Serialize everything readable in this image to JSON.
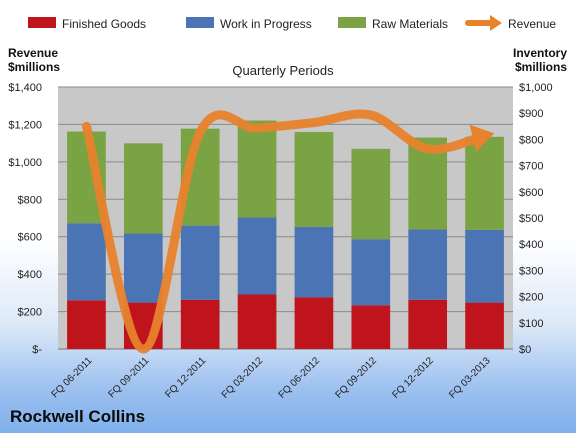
{
  "chart_data": {
    "type": "bar",
    "subtype": "stacked-bar-with-line",
    "title": "Quarterly Periods",
    "company": "Rockwell Collins",
    "categories": [
      "FQ 06-2011",
      "FQ 09-2011",
      "FQ 12-2011",
      "FQ 03-2012",
      "FQ 06-2012",
      "FQ 09-2012",
      "FQ 12-2012",
      "FQ 03-2013"
    ],
    "y_left_label": [
      "Revenue",
      "$millions"
    ],
    "y_right_label": [
      "Inventory",
      "$millions"
    ],
    "y_left_ticks": [
      "$-",
      "$200",
      "$400",
      "$600",
      "$800",
      "$1,000",
      "$1,200",
      "$1,400"
    ],
    "y_right_ticks": [
      "$0",
      "$100",
      "$200",
      "$300",
      "$400",
      "$500",
      "$600",
      "$700",
      "$800",
      "$900",
      "$1,000"
    ],
    "ylim_left": [
      0,
      1400
    ],
    "ylim_right": [
      0,
      1000
    ],
    "grid": true,
    "legend_position": "top",
    "series": [
      {
        "name": "Finished Goods",
        "axis": "right",
        "color": "#c0141c",
        "values": [
          186,
          177,
          188,
          208,
          197,
          167,
          188,
          177
        ]
      },
      {
        "name": "Work in Progress",
        "axis": "right",
        "color": "#4a74b4",
        "values": [
          294,
          264,
          283,
          294,
          269,
          252,
          268,
          278
        ]
      },
      {
        "name": "Raw Materials",
        "axis": "right",
        "color": "#7aa344",
        "values": [
          350,
          344,
          370,
          370,
          362,
          345,
          351,
          355
        ]
      },
      {
        "name": "Revenue",
        "axis": "left",
        "type": "line",
        "color": "#e8822c",
        "values": [
          1190,
          0,
          1160,
          1180,
          1210,
          1250,
          1070,
          1140
        ]
      }
    ]
  }
}
